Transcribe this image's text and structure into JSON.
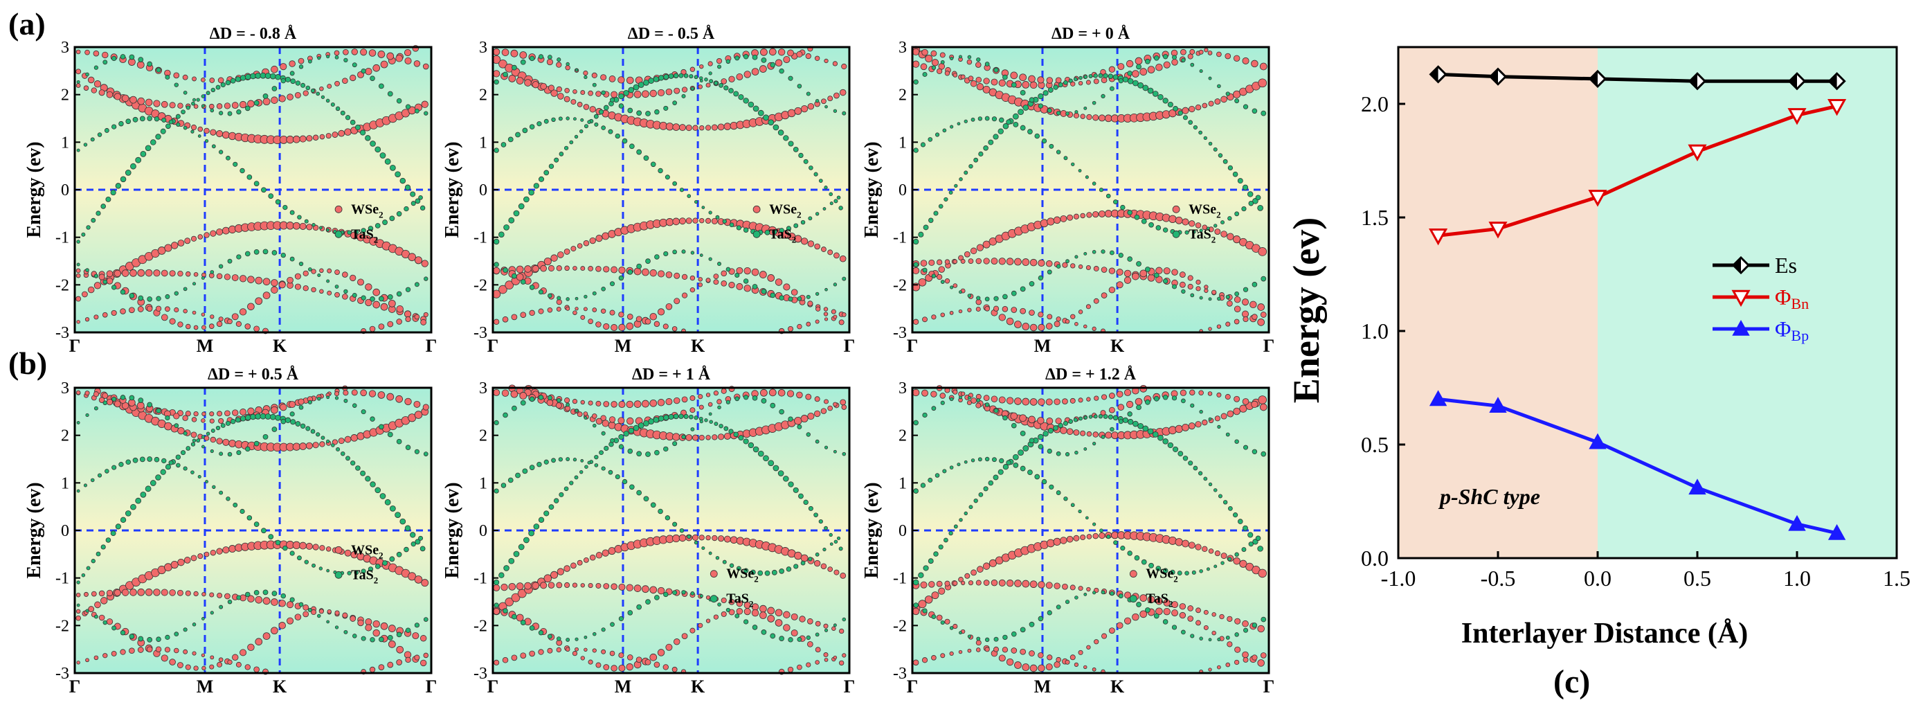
{
  "panel_labels": {
    "a": "(a)",
    "b": "(b)",
    "c": "(c)"
  },
  "band_axis": {
    "ylabel": "Energy (ev)",
    "ylim": [
      -3,
      3
    ],
    "yticks": [
      "3",
      "2",
      "1",
      "0",
      "-1",
      "-2",
      "-3"
    ],
    "kpoints": [
      "Γ",
      "M",
      "K",
      "Γ"
    ],
    "legend": [
      "WSe",
      "TaS"
    ],
    "legend_sub": "2"
  },
  "band_panels": [
    {
      "title": "ΔD = - 0.8 Å",
      "cbm_k": 1.05,
      "vbm_k": -0.75,
      "legend_pos": "right-mid"
    },
    {
      "title": "ΔD = - 0.5 Å",
      "cbm_k": 1.3,
      "vbm_k": -0.65,
      "legend_pos": "right-mid"
    },
    {
      "title": "ΔD = + 0 Å",
      "cbm_k": 1.5,
      "vbm_k": -0.5,
      "legend_pos": "right-mid"
    },
    {
      "title": "ΔD = + 0.5 Å",
      "cbm_k": 1.75,
      "vbm_k": -0.3,
      "legend_pos": "right-mid"
    },
    {
      "title": "ΔD = + 1 Å",
      "cbm_k": 1.95,
      "vbm_k": -0.15,
      "legend_pos": "center-low"
    },
    {
      "title": "ΔD = + 1.2 Å",
      "cbm_k": 2.0,
      "vbm_k": -0.1,
      "legend_pos": "center-low"
    }
  ],
  "chart_data": {
    "type": "line",
    "xlabel": "Interlayer Distance (Å)",
    "ylabel": "Energy (ev)",
    "xlim": [
      -1.0,
      1.5
    ],
    "ylim": [
      0.0,
      2.25
    ],
    "xticks": [
      "-1.0",
      "-0.5",
      "0.0",
      "0.5",
      "1.0",
      "1.5"
    ],
    "yticks": [
      "0.0",
      "0.5",
      "1.0",
      "1.5",
      "2.0"
    ],
    "x": [
      -0.8,
      -0.5,
      0.0,
      0.5,
      1.0,
      1.2
    ],
    "series": [
      {
        "name": "Es",
        "sub": "",
        "color": "#000000",
        "marker": "diamond",
        "values": [
          2.13,
          2.12,
          2.11,
          2.1,
          2.1,
          2.1
        ]
      },
      {
        "name": "Φ",
        "sub": "Bn",
        "color": "#e00000",
        "marker": "triangle-down",
        "values": [
          1.42,
          1.45,
          1.59,
          1.79,
          1.95,
          1.99
        ]
      },
      {
        "name": "Φ",
        "sub": "Bp",
        "color": "#1a1aff",
        "marker": "triangle-up",
        "values": [
          0.7,
          0.67,
          0.51,
          0.31,
          0.15,
          0.11
        ]
      }
    ],
    "region_label": "p-ShC type",
    "region_colors": {
      "left": "#f8e0d0",
      "right": "#c8f5e4"
    }
  }
}
